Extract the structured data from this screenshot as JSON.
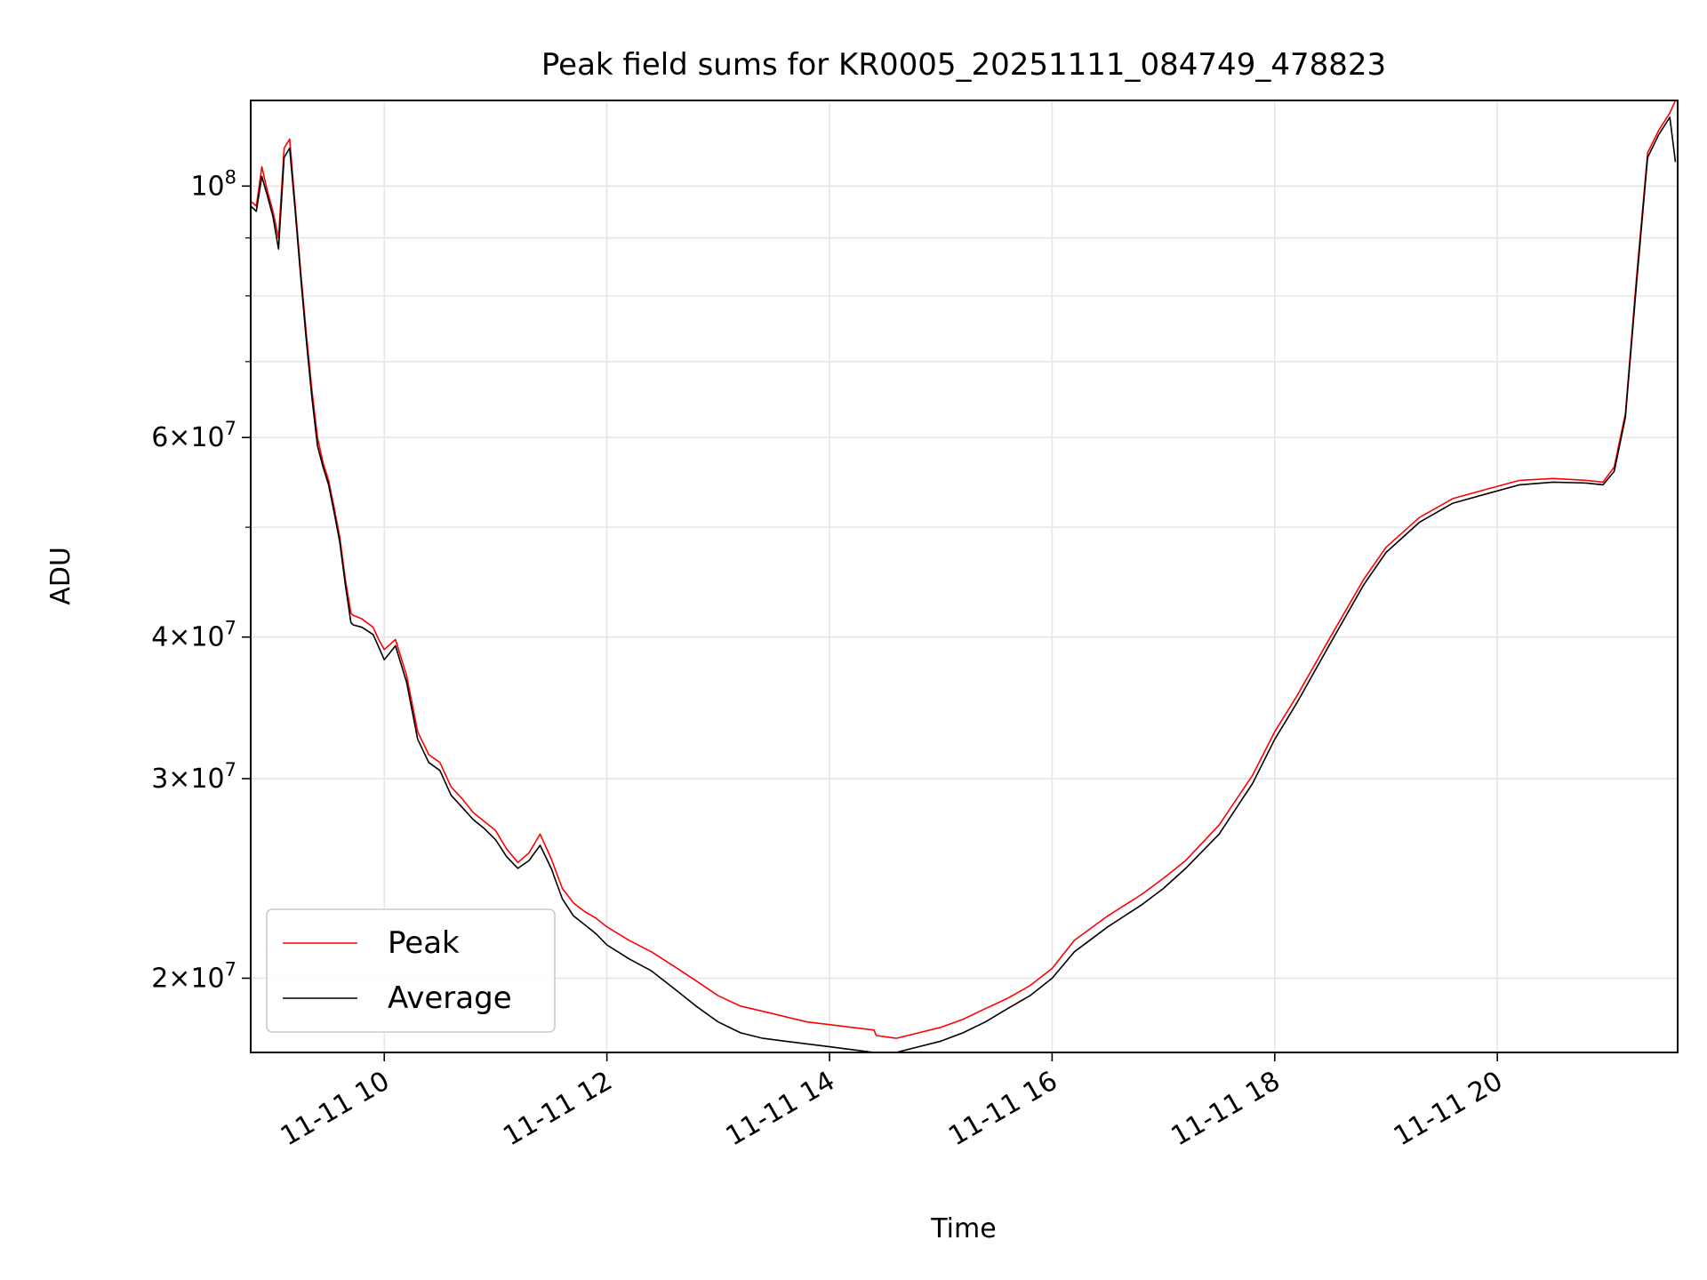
{
  "chart_data": {
    "type": "line",
    "title": "Peak field sums for KR0005_20251111_084749_478823",
    "xlabel": "Time",
    "ylabel": "ADU",
    "yscale": "log",
    "xlim": [
      8.8,
      21.62
    ],
    "ylim": [
      17200000,
      119000000
    ],
    "grid": true,
    "legend_position": "lower-left",
    "x_ticks": [
      {
        "value": 10,
        "label": "11-11 10"
      },
      {
        "value": 12,
        "label": "11-11 12"
      },
      {
        "value": 14,
        "label": "11-11 14"
      },
      {
        "value": 16,
        "label": "11-11 16"
      },
      {
        "value": 18,
        "label": "11-11 18"
      },
      {
        "value": 20,
        "label": "11-11 20"
      }
    ],
    "y_major_ticks": [
      {
        "value": 100000000,
        "base": "10",
        "exp": "8",
        "mant": ""
      },
      {
        "value": 60000000,
        "base": "10",
        "exp": "7",
        "mant": "6"
      },
      {
        "value": 40000000,
        "base": "10",
        "exp": "7",
        "mant": "4"
      },
      {
        "value": 30000000,
        "base": "10",
        "exp": "7",
        "mant": "3"
      },
      {
        "value": 20000000,
        "base": "10",
        "exp": "7",
        "mant": "2"
      }
    ],
    "y_minor_gridlines": [
      50000000,
      70000000,
      80000000,
      90000000
    ],
    "series": [
      {
        "name": "Peak",
        "color": "#ff0000",
        "x": [
          8.8,
          8.85,
          8.9,
          8.95,
          9.0,
          9.05,
          9.1,
          9.15,
          9.2,
          9.25,
          9.3,
          9.35,
          9.4,
          9.45,
          9.5,
          9.55,
          9.6,
          9.65,
          9.7,
          9.72,
          9.8,
          9.9,
          9.95,
          10.0,
          10.1,
          10.2,
          10.3,
          10.4,
          10.5,
          10.6,
          10.7,
          10.8,
          10.9,
          11.0,
          11.1,
          11.2,
          11.3,
          11.4,
          11.5,
          11.6,
          11.7,
          11.8,
          11.9,
          12.0,
          12.2,
          12.4,
          12.6,
          12.8,
          13.0,
          13.2,
          13.4,
          13.6,
          13.8,
          14.0,
          14.2,
          14.4,
          14.42,
          14.6,
          14.8,
          15.0,
          15.2,
          15.4,
          15.6,
          15.8,
          16.0,
          16.2,
          16.5,
          16.8,
          17.0,
          17.2,
          17.5,
          17.8,
          18.0,
          18.2,
          18.5,
          18.8,
          19.0,
          19.3,
          19.6,
          19.9,
          20.2,
          20.5,
          20.8,
          20.95,
          21.05,
          21.15,
          21.25,
          21.35,
          21.45,
          21.55,
          21.6
        ],
        "y": [
          97000000,
          96000000,
          104000000,
          99000000,
          95000000,
          90000000,
          108000000,
          110000000,
          96000000,
          84000000,
          74000000,
          66000000,
          60000000,
          57000000,
          55000000,
          52000000,
          49000000,
          45000000,
          42000000,
          41800000,
          41500000,
          40800000,
          39800000,
          39000000,
          39800000,
          37000000,
          33000000,
          31500000,
          31000000,
          29500000,
          28800000,
          28000000,
          27500000,
          27000000,
          26000000,
          25300000,
          25800000,
          26800000,
          25500000,
          24000000,
          23300000,
          22900000,
          22600000,
          22200000,
          21600000,
          21100000,
          20500000,
          19900000,
          19300000,
          18900000,
          18700000,
          18500000,
          18300000,
          18200000,
          18100000,
          18000000,
          17800000,
          17700000,
          17900000,
          18100000,
          18400000,
          18800000,
          19200000,
          19700000,
          20400000,
          21600000,
          22700000,
          23700000,
          24500000,
          25400000,
          27300000,
          30200000,
          33000000,
          35500000,
          40000000,
          45000000,
          48000000,
          51000000,
          53000000,
          54000000,
          55000000,
          55200000,
          55000000,
          54800000,
          56500000,
          63000000,
          83000000,
          107000000,
          112000000,
          116000000,
          119000000
        ]
      },
      {
        "name": "Average",
        "color": "#000000",
        "x": [
          8.8,
          8.85,
          8.9,
          8.95,
          9.0,
          9.05,
          9.1,
          9.15,
          9.2,
          9.25,
          9.3,
          9.35,
          9.4,
          9.45,
          9.5,
          9.55,
          9.6,
          9.65,
          9.7,
          9.72,
          9.8,
          9.9,
          9.95,
          10.0,
          10.1,
          10.2,
          10.3,
          10.4,
          10.5,
          10.6,
          10.7,
          10.8,
          10.9,
          11.0,
          11.1,
          11.2,
          11.3,
          11.4,
          11.5,
          11.6,
          11.7,
          11.8,
          11.9,
          12.0,
          12.2,
          12.4,
          12.6,
          12.8,
          13.0,
          13.2,
          13.4,
          13.6,
          13.8,
          14.0,
          14.2,
          14.4,
          14.42,
          14.6,
          14.8,
          15.0,
          15.2,
          15.4,
          15.6,
          15.8,
          16.0,
          16.2,
          16.5,
          16.8,
          17.0,
          17.2,
          17.5,
          17.8,
          18.0,
          18.2,
          18.5,
          18.8,
          19.0,
          19.3,
          19.6,
          19.9,
          20.2,
          20.5,
          20.8,
          20.95,
          21.05,
          21.15,
          21.25,
          21.35,
          21.45,
          21.55,
          21.6
        ],
        "y": [
          96000000,
          95000000,
          102000000,
          98000000,
          94000000,
          88000000,
          106000000,
          108000000,
          95000000,
          83000000,
          73000000,
          65000000,
          59000000,
          56500000,
          54500000,
          51500000,
          48500000,
          44500000,
          41200000,
          41000000,
          40800000,
          40200000,
          39200000,
          38200000,
          39300000,
          36500000,
          32500000,
          31000000,
          30500000,
          29000000,
          28300000,
          27600000,
          27100000,
          26500000,
          25600000,
          25000000,
          25400000,
          26200000,
          25000000,
          23500000,
          22700000,
          22300000,
          21900000,
          21400000,
          20800000,
          20300000,
          19600000,
          18900000,
          18300000,
          17900000,
          17700000,
          17600000,
          17500000,
          17400000,
          17300000,
          17200000,
          17100000,
          17200000,
          17400000,
          17600000,
          17900000,
          18300000,
          18800000,
          19300000,
          20000000,
          21100000,
          22200000,
          23200000,
          24000000,
          25000000,
          26800000,
          29700000,
          32500000,
          35000000,
          39500000,
          44500000,
          47500000,
          50500000,
          52500000,
          53500000,
          54500000,
          54800000,
          54700000,
          54500000,
          56000000,
          62500000,
          82000000,
          106000000,
          111000000,
          115000000,
          105000000
        ]
      }
    ]
  }
}
